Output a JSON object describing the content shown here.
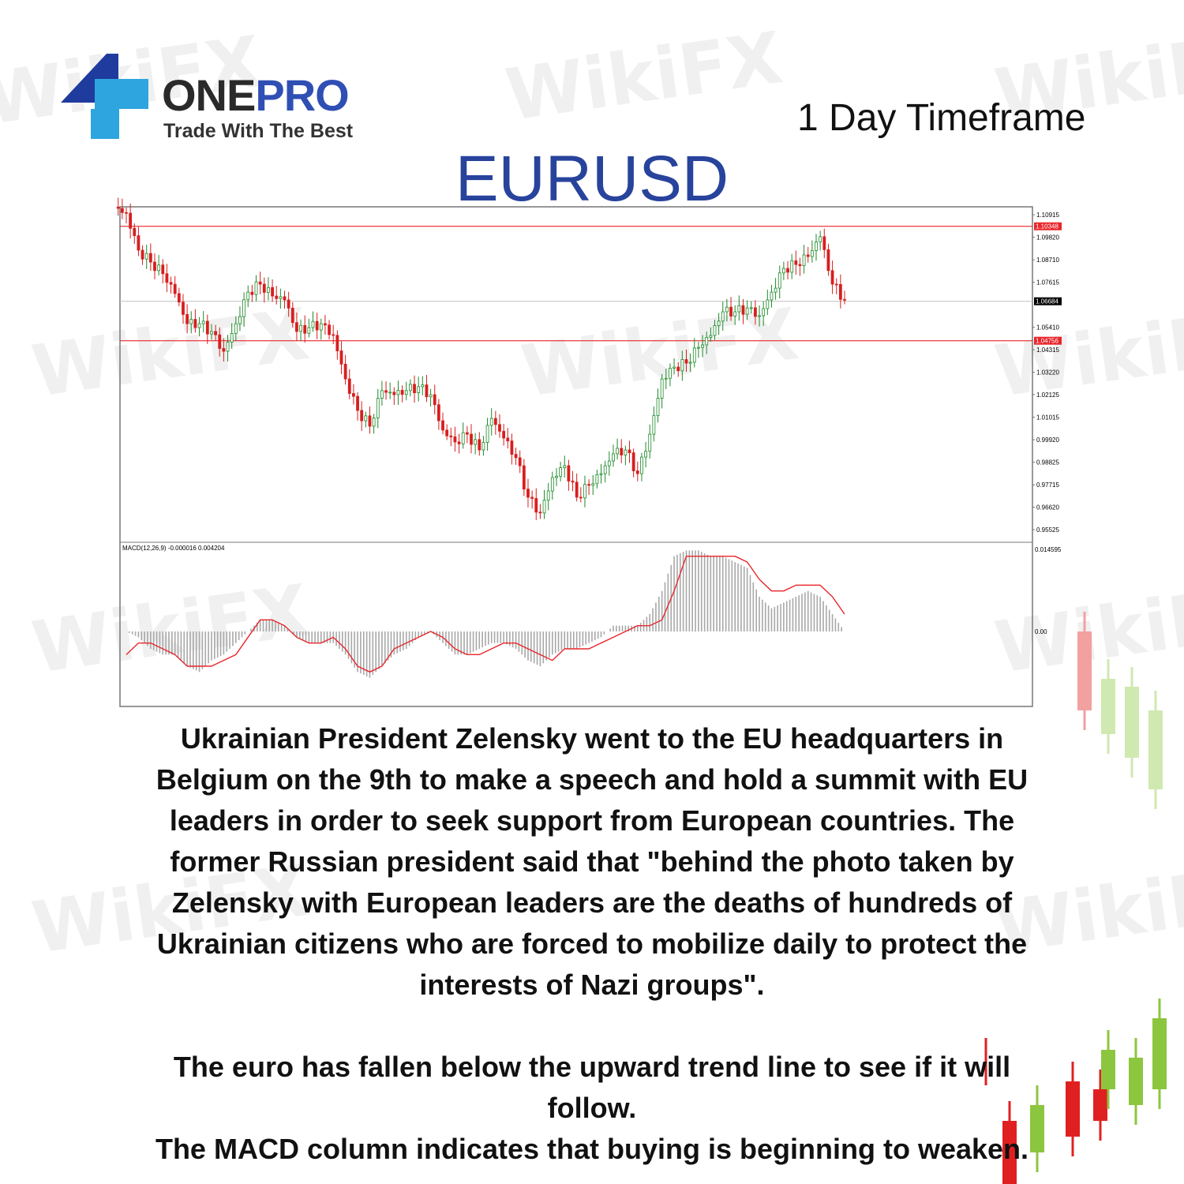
{
  "brand": {
    "name_part1": "ONE",
    "name_part2": "PRO",
    "tagline": "Trade With The Best",
    "watermark": "WikiFX"
  },
  "header": {
    "timeframe": "1 Day Timeframe",
    "symbol": "EURUSD"
  },
  "chart_data": {
    "type": "candlestick",
    "title": "EURUSD",
    "price_axis_ticks": [
      "1.10915",
      "1.09820",
      "1.08710",
      "1.07615",
      "1.05410",
      "1.04315",
      "1.03220",
      "1.02125",
      "1.01015",
      "0.99920",
      "0.98825",
      "0.97715",
      "0.96620",
      "0.95525"
    ],
    "ylim": [
      0.95525,
      1.10915
    ],
    "horizontal_lines": [
      {
        "price": 1.10348,
        "label": "1.10348",
        "color": "#e8262b"
      },
      {
        "price": 1.04756,
        "label": "1.04756",
        "color": "#e8262b"
      },
      {
        "price": 1.06684,
        "label": "1.06684",
        "color": "#000000",
        "current": true
      }
    ],
    "closes_approx": [
      1.1099,
      1.0918,
      1.086,
      1.0803,
      1.0706,
      1.0559,
      1.0559,
      1.0521,
      1.0424,
      1.0559,
      1.0713,
      1.0752,
      1.0694,
      1.0675,
      1.0521,
      1.054,
      1.0559,
      1.0502,
      1.0289,
      1.0135,
      1.0058,
      1.0232,
      1.0212,
      1.0232,
      1.0251,
      1.0212,
      1.0039,
      0.9981,
      1.0019,
      0.9942,
      1.0096,
      1.0,
      0.9904,
      0.9711,
      0.9634,
      0.9807,
      0.9865,
      0.9711,
      0.9769,
      0.9826,
      0.9923,
      0.9942,
      0.9826,
      1.0019,
      1.0289,
      1.0347,
      1.0366,
      1.0443,
      1.0501,
      1.0617,
      1.0617,
      1.0636,
      1.0598,
      1.0713,
      1.0829,
      1.0848,
      1.0887,
      1.0984,
      1.0752,
      1.0675
    ],
    "macd": {
      "label": "MACD(12,26,9) -0.000016 0.004204",
      "axis_ticks": [
        "0.014595",
        "0.00"
      ],
      "ylim": [
        -0.008,
        0.014595
      ],
      "histogram": [
        0,
        -0.001,
        -0.003,
        -0.004,
        -0.004,
        -0.006,
        -0.007,
        -0.005,
        -0.004,
        -0.002,
        0,
        0.002,
        0.002,
        0.001,
        -0.001,
        -0.002,
        -0.002,
        -0.002,
        -0.004,
        -0.007,
        -0.008,
        -0.006,
        -0.004,
        -0.003,
        -0.001,
        0,
        -0.002,
        -0.004,
        -0.004,
        -0.003,
        -0.002,
        -0.002,
        -0.003,
        -0.005,
        -0.006,
        -0.004,
        -0.003,
        -0.003,
        -0.002,
        -0.001,
        0.001,
        0.001,
        0.001,
        0.003,
        0.007,
        0.013,
        0.014,
        0.014,
        0.013,
        0.013,
        0.012,
        0.011,
        0.006,
        0.004,
        0.005,
        0.006,
        0.007,
        0.006,
        0.003,
        0
      ],
      "signal": [
        -0.004,
        -0.002,
        -0.002,
        -0.003,
        -0.004,
        -0.006,
        -0.006,
        -0.006,
        -0.005,
        -0.004,
        -0.001,
        0.002,
        0.002,
        0.001,
        -0.001,
        -0.002,
        -0.002,
        -0.001,
        -0.003,
        -0.006,
        -0.007,
        -0.006,
        -0.003,
        -0.002,
        -0.001,
        0,
        -0.001,
        -0.003,
        -0.004,
        -0.004,
        -0.003,
        -0.002,
        -0.002,
        -0.003,
        -0.004,
        -0.005,
        -0.003,
        -0.003,
        -0.003,
        -0.002,
        -0.001,
        0,
        0.001,
        0.001,
        0.002,
        0.007,
        0.013,
        0.013,
        0.013,
        0.013,
        0.013,
        0.012,
        0.009,
        0.007,
        0.007,
        0.008,
        0.008,
        0.008,
        0.006,
        0.003
      ]
    },
    "colors": {
      "up": "#1e8a2a",
      "down": "#d81e1e",
      "signal": "#e8262b",
      "histogram": "#a8a8a8"
    }
  },
  "commentary": {
    "paragraph1": "Ukrainian President Zelensky went to the EU headquarters in Belgium on the 9th to make a speech and hold a summit with EU leaders in order to seek support from European countries. The former Russian president said that \"behind the photo taken by Zelensky with European leaders are the deaths of hundreds of Ukrainian citizens who are forced to mobilize daily to protect the interests of Nazi groups\".",
    "paragraph2_line1": "The euro has fallen below the upward trend line to see if it will follow.",
    "paragraph2_line2": "The MACD column indicates that buying is beginning to weaken."
  }
}
